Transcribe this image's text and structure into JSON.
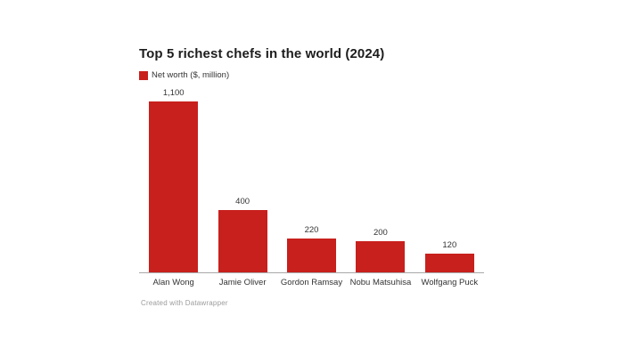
{
  "header": {
    "title": "Top 5 richest chefs in the world (2024)"
  },
  "legend": {
    "label": "Net worth ($, million)"
  },
  "footer": {
    "attribution": "Created with Datawrapper"
  },
  "colors": {
    "bar": "#c8201d",
    "axis_line": "#a8a8a8",
    "title_text": "#1d1d1d",
    "label_text": "#333333",
    "footer_text": "#9b9b9b",
    "background": "#ffffff"
  },
  "chart_data": {
    "type": "bar",
    "title": "Top 5 richest chefs in the world (2024)",
    "legend_entries": [
      "Net worth ($, million)"
    ],
    "legend_position": "top-left",
    "categories": [
      "Alan Wong",
      "Jamie Oliver",
      "Gordon Ramsay",
      "Nobu Matsuhisa",
      "Wolfgang Puck"
    ],
    "values": [
      1100,
      400,
      220,
      200,
      120
    ],
    "value_labels": [
      "1,100",
      "400",
      "220",
      "200",
      "120"
    ],
    "xlabel": "",
    "ylabel": "Net worth ($, million)",
    "ylim": [
      0,
      1100
    ],
    "grid": false,
    "bar_color": "#c8201d"
  }
}
